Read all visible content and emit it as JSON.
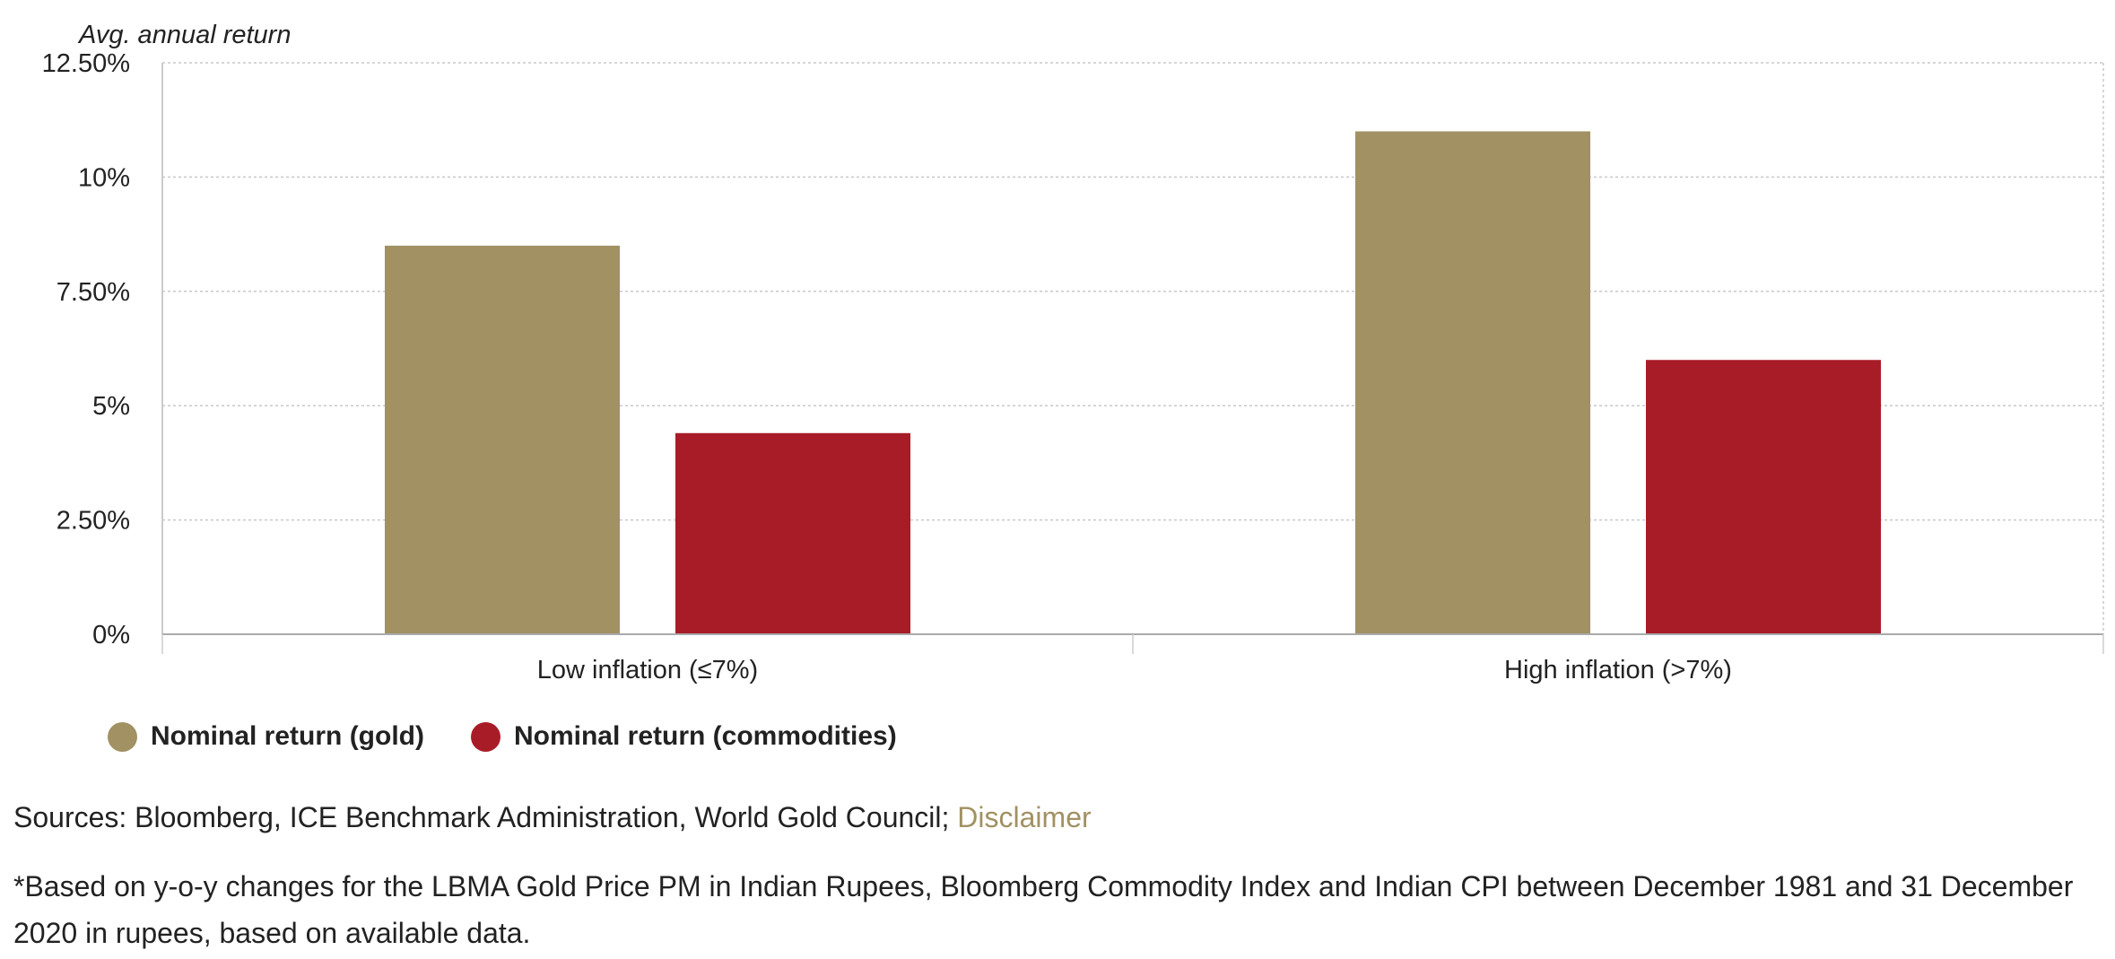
{
  "chart_data": {
    "type": "bar",
    "ylabel": "Avg. annual return",
    "categories": [
      "Low inflation (≤7%)",
      "High inflation (>7%)"
    ],
    "series": [
      {
        "name": "Nominal return (gold)",
        "values": [
          8.5,
          11.0
        ],
        "color": "#a19163"
      },
      {
        "name": "Nominal return (commodities)",
        "values": [
          4.4,
          6.0
        ],
        "color": "#a81c28"
      }
    ],
    "ylim": [
      0,
      12.5
    ],
    "yticks": [
      {
        "value": 0,
        "label": "0%"
      },
      {
        "value": 2.5,
        "label": "2.50%"
      },
      {
        "value": 5,
        "label": "5%"
      },
      {
        "value": 7.5,
        "label": "7.50%"
      },
      {
        "value": 10,
        "label": "10%"
      },
      {
        "value": 12.5,
        "label": "12.50%"
      }
    ],
    "grid": true,
    "legend_position": "bottom-left"
  },
  "sources": {
    "text": "Sources: Bloomberg, ICE Benchmark Administration, World Gold Council; ",
    "link": "Disclaimer"
  },
  "footnote": "*Based on y-o-y changes for the LBMA Gold Price PM in Indian Rupees, Bloomberg Commodity Index and Indian CPI between December 1981 and 31 December 2020 in rupees, based on available data.",
  "colors": {
    "gold": "#a19163",
    "commodities": "#a81c28",
    "grid": "#cccccc",
    "axis": "#bbbbbb",
    "text": "#222222"
  }
}
